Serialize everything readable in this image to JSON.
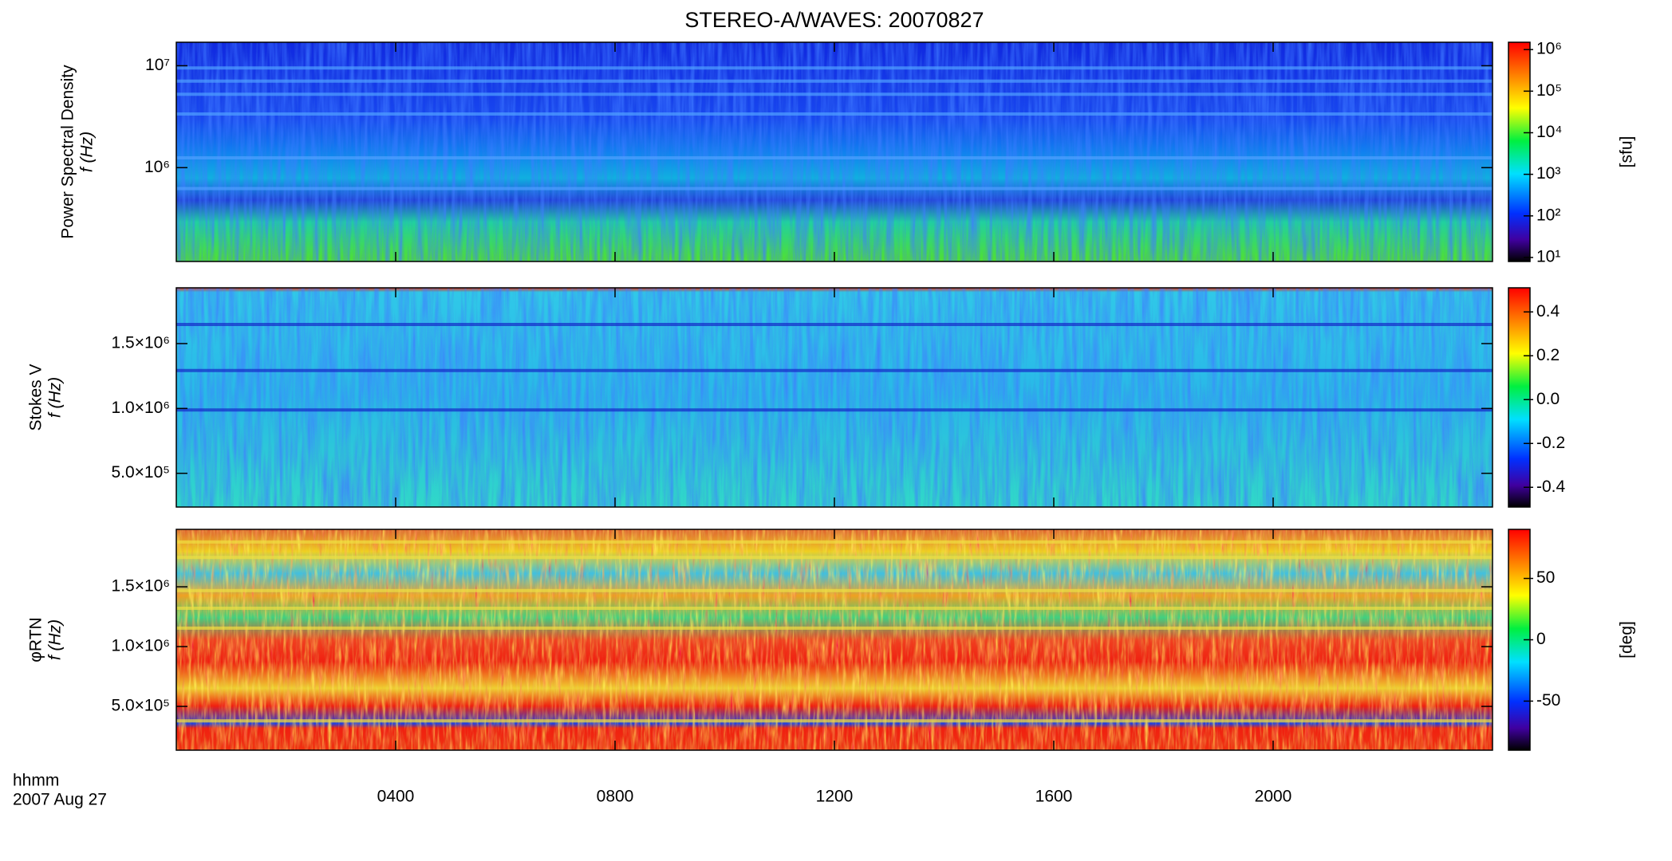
{
  "chart_data": {
    "type": "spectrogram",
    "title": "STEREO-A/WAVES: 20070827",
    "x_axis_label": "hhmm",
    "date": "2007 Aug 27",
    "xlim": [
      0,
      24
    ],
    "xticks": [
      {
        "value": 4,
        "label": "0400"
      },
      {
        "value": 8,
        "label": "0800"
      },
      {
        "value": 12,
        "label": "1200"
      },
      {
        "value": 16,
        "label": "1600"
      },
      {
        "value": 20,
        "label": "2000"
      }
    ],
    "panels": [
      {
        "ylabel": [
          "Power Spectral Density",
          "f (Hz)"
        ],
        "log": true,
        "ylim": [
          120000,
          17000000
        ],
        "yticks": [
          {
            "value": 1000000,
            "label": "10⁶"
          },
          {
            "value": 10000000,
            "label": "10⁷"
          }
        ],
        "colorbar": {
          "label": "[sfu]",
          "log": true,
          "lim": [
            8,
            1500000
          ],
          "ticks": [
            {
              "value": 10,
              "label": "10¹"
            },
            {
              "value": 100,
              "label": "10²"
            },
            {
              "value": 1000,
              "label": "10³"
            },
            {
              "value": 10000,
              "label": "10⁴"
            },
            {
              "value": 100000,
              "label": "10⁵"
            },
            {
              "value": 1000000,
              "label": "10⁶"
            }
          ]
        }
      },
      {
        "ylabel": [
          "Stokes V",
          "f (Hz)"
        ],
        "log": false,
        "ylim": [
          240000,
          1930000
        ],
        "yticks": [
          {
            "value": 500000,
            "label": "5.0×10⁵"
          },
          {
            "value": 1000000,
            "label": "1.0×10⁶"
          },
          {
            "value": 1500000,
            "label": "1.5×10⁶"
          }
        ],
        "colorbar": {
          "label": null,
          "log": false,
          "lim": [
            -0.49,
            0.51
          ],
          "ticks": [
            -0.4,
            -0.2,
            {
              "value": 0,
              "label": "0.0"
            },
            0.2,
            0.4
          ]
        }
      },
      {
        "ylabel": [
          "φRTN",
          "f (Hz)"
        ],
        "log": false,
        "ylim": [
          134000,
          1980000
        ],
        "yticks": [
          {
            "value": 500000,
            "label": "5.0×10⁵"
          },
          {
            "value": 1000000,
            "label": "1.0×10⁶"
          },
          {
            "value": 1500000,
            "label": "1.5×10⁶"
          }
        ],
        "colorbar": {
          "label": "[deg]",
          "log": false,
          "lim": [
            -90,
            90
          ],
          "ticks": [
            -50,
            0,
            50
          ]
        }
      }
    ]
  }
}
